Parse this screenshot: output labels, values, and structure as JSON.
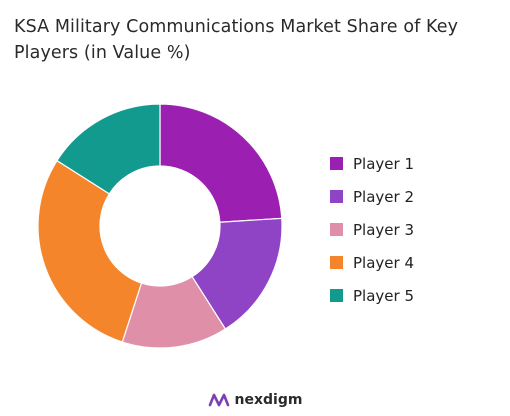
{
  "chart_data": {
    "type": "pie",
    "variant": "donut",
    "title": "KSA Military Communications Market Share of Key Players (in Value %)",
    "categories": [
      "Player 1",
      "Player 2",
      "Player 3",
      "Player 4",
      "Player 5"
    ],
    "values": [
      24,
      17,
      14,
      29,
      16
    ],
    "colors": [
      "#9B1FB0",
      "#8E44C4",
      "#E08FA8",
      "#F5852A",
      "#139A8E"
    ],
    "legend_position": "right"
  },
  "brand": {
    "name": "nexdigm",
    "logo_icon": "nexdigm-logo-icon",
    "logo_color": "#7B3FB0"
  }
}
